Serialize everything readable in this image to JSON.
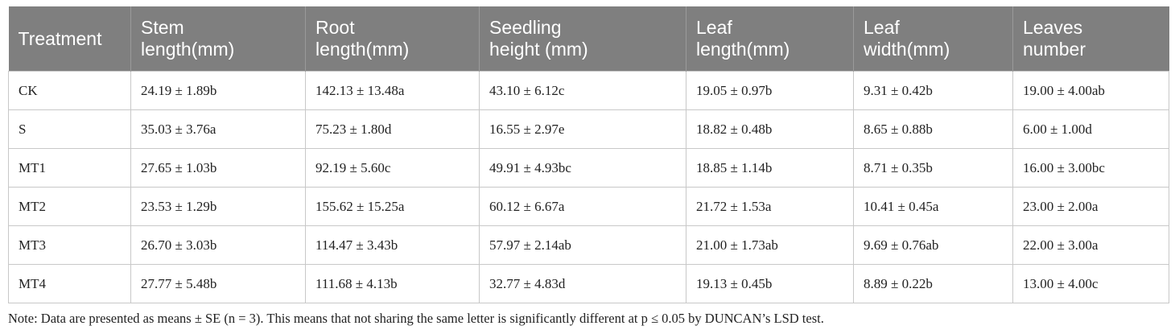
{
  "table": {
    "header": [
      "Treatment",
      "Stem\nlength(mm)",
      "Root\nlength(mm)",
      "Seedling\nheight (mm)",
      "Leaf\nlength(mm)",
      "Leaf\nwidth(mm)",
      "Leaves\nnumber"
    ],
    "rows": [
      [
        "CK",
        "24.19 ± 1.89b",
        "142.13 ± 13.48a",
        "43.10 ± 6.12c",
        "19.05 ± 0.97b",
        "9.31 ± 0.42b",
        "19.00 ± 4.00ab"
      ],
      [
        "S",
        "35.03 ± 3.76a",
        "75.23 ± 1.80d",
        "16.55 ± 2.97e",
        "18.82 ± 0.48b",
        "8.65 ± 0.88b",
        "6.00 ± 1.00d"
      ],
      [
        "MT1",
        "27.65 ± 1.03b",
        "92.19 ± 5.60c",
        "49.91 ± 4.93bc",
        "18.85 ± 1.14b",
        "8.71 ± 0.35b",
        "16.00 ± 3.00bc"
      ],
      [
        "MT2",
        "23.53 ± 1.29b",
        "155.62 ± 15.25a",
        "60.12 ± 6.67a",
        "21.72 ± 1.53a",
        "10.41 ± 0.45a",
        "23.00 ± 2.00a"
      ],
      [
        "MT3",
        "26.70 ± 3.03b",
        "114.47 ± 3.43b",
        "57.97 ± 2.14ab",
        "21.00 ± 1.73ab",
        "9.69 ± 0.76ab",
        "22.00 ± 3.00a"
      ],
      [
        "MT4",
        "27.77 ± 5.48b",
        "111.68 ± 4.13b",
        "32.77 ± 4.83d",
        "19.13 ± 0.45b",
        "8.89 ± 0.22b",
        "13.00 ± 4.00c"
      ]
    ]
  },
  "note": "Note: Data are presented as means ± SE (n = 3). This means that not sharing the same letter is significantly different at p ≤ 0.05 by DUNCAN’s LSD test."
}
